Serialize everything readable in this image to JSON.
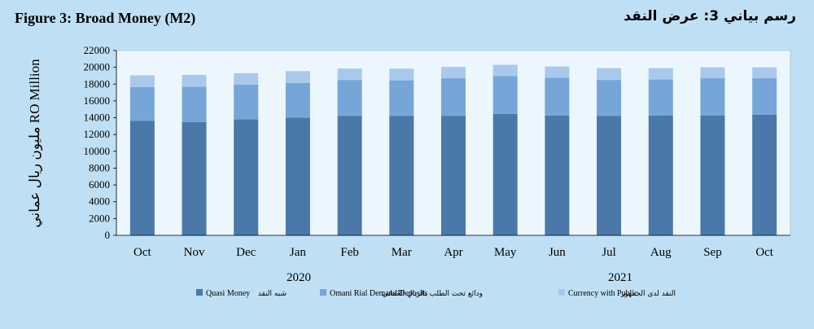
{
  "title_en": "Figure 3: Broad Money (M2)",
  "title_ar": "رسم بياني 3: عرض النقد",
  "chart_data": {
    "type": "bar",
    "stacked": true,
    "categories": [
      "Oct",
      "Nov",
      "Dec",
      "Jan",
      "Feb",
      "Mar",
      "Apr",
      "May",
      "Jun",
      "Jul",
      "Aug",
      "Sep",
      "Oct"
    ],
    "years": [
      "2020",
      "2021"
    ],
    "ylabel": "مليون ريال عماني RO Million",
    "ylim": [
      0,
      22000
    ],
    "yticks": [
      "0",
      "2000",
      "4000",
      "6000",
      "8000",
      "10000",
      "12000",
      "14000",
      "16000",
      "18000",
      "20000",
      "22000"
    ],
    "series": [
      {
        "name": "Quasi Money",
        "name_ar": "شبه النقد",
        "color": "#4a78a9",
        "values": [
          13650,
          13500,
          13800,
          14000,
          14200,
          14200,
          14200,
          14450,
          14250,
          14200,
          14250,
          14250,
          14350
        ]
      },
      {
        "name": "Omani Rial Demand Deposits",
        "name_ar": "ودائع تحت الطلب بالريال العُماني",
        "color": "#76a6d8",
        "values": [
          4000,
          4200,
          4150,
          4150,
          4300,
          4250,
          4500,
          4500,
          4500,
          4300,
          4300,
          4450,
          4350
        ]
      },
      {
        "name": "Currency with Public",
        "name_ar": "النقد لدى الجمهور",
        "color": "#a9c9ec",
        "values": [
          1400,
          1400,
          1350,
          1400,
          1350,
          1400,
          1350,
          1350,
          1350,
          1400,
          1350,
          1300,
          1300
        ]
      }
    ],
    "grid": false,
    "legend_position": "bottom"
  }
}
